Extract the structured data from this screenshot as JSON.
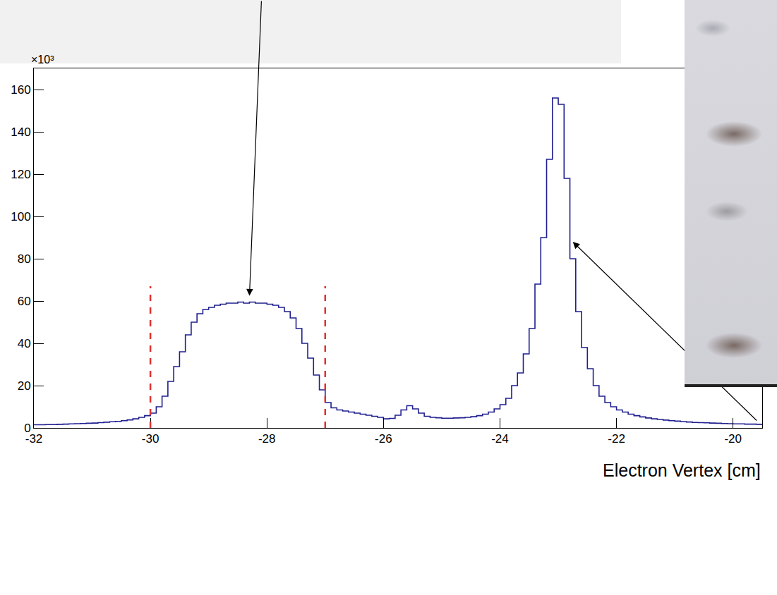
{
  "chart_data": {
    "type": "histogram",
    "x_label": "Electron Vertex [cm]",
    "y_multiplier_label": "×10³",
    "color": "#1f1f8f",
    "bins": [
      -32,
      -31.9,
      -31.8,
      -31.7,
      -31.6,
      -31.5,
      -31.4,
      -31.3,
      -31.2,
      -31.1,
      -31,
      -30.9,
      -30.8,
      -30.7,
      -30.6,
      -30.5,
      -30.4,
      -30.3,
      -30.2,
      -30.1,
      -30,
      -29.9,
      -29.8,
      -29.7,
      -29.6,
      -29.5,
      -29.4,
      -29.3,
      -29.2,
      -29.1,
      -29,
      -28.9,
      -28.8,
      -28.7,
      -28.6,
      -28.5,
      -28.4,
      -28.3,
      -28.2,
      -28.1,
      -28,
      -27.9,
      -27.8,
      -27.7,
      -27.6,
      -27.5,
      -27.4,
      -27.3,
      -27.2,
      -27.1,
      -27,
      -26.9,
      -26.8,
      -26.7,
      -26.6,
      -26.5,
      -26.4,
      -26.3,
      -26.2,
      -26.1,
      -26,
      -25.9,
      -25.8,
      -25.7,
      -25.6,
      -25.5,
      -25.4,
      -25.3,
      -25.2,
      -25.1,
      -25,
      -24.9,
      -24.8,
      -24.7,
      -24.6,
      -24.5,
      -24.4,
      -24.3,
      -24.2,
      -24.1,
      -24,
      -23.9,
      -23.8,
      -23.7,
      -23.6,
      -23.5,
      -23.4,
      -23.3,
      -23.2,
      -23.1,
      -23,
      -22.9,
      -22.8,
      -22.7,
      -22.6,
      -22.5,
      -22.4,
      -22.3,
      -22.2,
      -22.1,
      -22,
      -21.9,
      -21.8,
      -21.7,
      -21.6,
      -21.5,
      -21.4,
      -21.3,
      -21.2,
      -21.1,
      -21,
      -20.9,
      -20.8,
      -20.7,
      -20.6,
      -20.5,
      -20.4,
      -20.3,
      -20.2,
      -20.1,
      -20,
      -19.9,
      -19.8,
      -19.7,
      -19.6,
      -19.5
    ],
    "counts": [
      1500,
      1500,
      1600,
      1600,
      1700,
      1800,
      1900,
      2000,
      2100,
      2200,
      2300,
      2500,
      2700,
      2900,
      3100,
      3400,
      3800,
      4300,
      5000,
      5800,
      7000,
      10000,
      15000,
      22000,
      29000,
      36000,
      44000,
      50000,
      54000,
      56000,
      57000,
      58000,
      58500,
      59000,
      59000,
      59500,
      59000,
      59500,
      59000,
      59000,
      58500,
      58000,
      57000,
      55000,
      52000,
      47000,
      40000,
      33000,
      25000,
      18000,
      12000,
      9500,
      8500,
      8000,
      7500,
      7000,
      6500,
      6000,
      5500,
      5000,
      4300,
      4500,
      6000,
      8500,
      10500,
      9000,
      7000,
      5500,
      5000,
      4800,
      4600,
      4600,
      4700,
      4800,
      5000,
      5300,
      5800,
      6500,
      7500,
      9000,
      11000,
      14000,
      20000,
      26000,
      35000,
      47000,
      68000,
      90000,
      127000,
      156000,
      153000,
      118000,
      80000,
      55000,
      38000,
      28000,
      20000,
      15000,
      12000,
      10000,
      8500,
      7500,
      6500,
      5800,
      5200,
      4700,
      4300,
      4000,
      3700,
      3400,
      3200,
      3000,
      2800,
      2600,
      2500,
      2400,
      2300,
      2200,
      2100,
      2000,
      1900,
      1900,
      1800,
      1800,
      1700
    ],
    "xlim": [
      -32,
      -19.5
    ],
    "xticks": [
      -32,
      -30,
      -28,
      -26,
      -24,
      -22,
      -20
    ],
    "ylim": [
      0,
      170000
    ],
    "yticks": [
      {
        "value": 0,
        "label": "0"
      },
      {
        "value": 20000,
        "label": "20"
      },
      {
        "value": 40000,
        "label": "40"
      },
      {
        "value": 60000,
        "label": "60"
      },
      {
        "value": 80000,
        "label": "80"
      },
      {
        "value": 100000,
        "label": "100"
      },
      {
        "value": 120000,
        "label": "120"
      },
      {
        "value": 140000,
        "label": "140"
      },
      {
        "value": 160000,
        "label": "160"
      }
    ],
    "cuts": {
      "x": [
        -30,
        -27
      ],
      "top": 67000,
      "color": "#e03030",
      "line_style": "dashed"
    }
  }
}
